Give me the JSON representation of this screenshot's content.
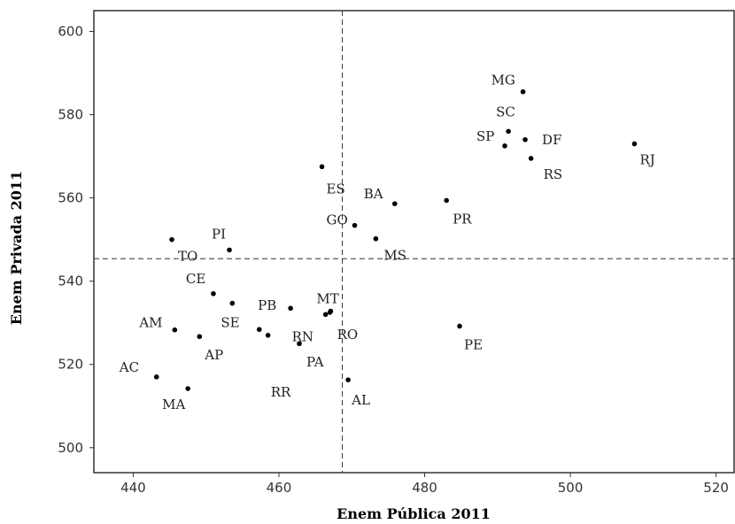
{
  "chart_data": {
    "type": "scatter",
    "xlabel": "Enem Pública 2011",
    "ylabel": "Enem Privada 2011",
    "xlim": [
      434.6,
      522.6
    ],
    "ylim": [
      494.0,
      605.0
    ],
    "xticks": [
      440,
      460,
      480,
      500,
      520
    ],
    "yticks": [
      500,
      520,
      540,
      560,
      580,
      600
    ],
    "grid": false,
    "reference_lines": {
      "x": 468.7,
      "y": 545.4
    },
    "points": [
      {
        "label": "MG",
        "x": 493.5,
        "y": 585.5
      },
      {
        "label": "SC",
        "x": 491.5,
        "y": 576.0
      },
      {
        "label": "SP",
        "x": 491.0,
        "y": 572.5
      },
      {
        "label": "DF",
        "x": 493.8,
        "y": 574.0
      },
      {
        "label": "RS",
        "x": 494.6,
        "y": 569.5
      },
      {
        "label": "RJ",
        "x": 508.8,
        "y": 573.0
      },
      {
        "label": "ES",
        "x": 465.9,
        "y": 567.5
      },
      {
        "label": "BA",
        "x": 475.9,
        "y": 558.6
      },
      {
        "label": "PR",
        "x": 483.0,
        "y": 559.4
      },
      {
        "label": "GO",
        "x": 470.4,
        "y": 553.4
      },
      {
        "label": "MS",
        "x": 473.3,
        "y": 550.2
      },
      {
        "label": "PI",
        "x": 453.2,
        "y": 547.5
      },
      {
        "label": "TO",
        "x": 445.3,
        "y": 550.0
      },
      {
        "label": "CE",
        "x": 451.0,
        "y": 537.0
      },
      {
        "label": "SE",
        "x": 453.6,
        "y": 534.7
      },
      {
        "label": "MT",
        "x": 467.1,
        "y": 532.8
      },
      {
        "label": "PB",
        "x": 461.6,
        "y": 533.5
      },
      {
        "label": "RN",
        "x": 466.4,
        "y": 532.0
      },
      {
        "label": "RO",
        "x": 467.0,
        "y": 532.5
      },
      {
        "label": "AM",
        "x": 445.7,
        "y": 528.3
      },
      {
        "label": "AP",
        "x": 449.1,
        "y": 526.7
      },
      {
        "label": "RR",
        "x": 457.3,
        "y": 528.4
      },
      {
        "label": "RR2",
        "x": 458.5,
        "y": 527.0,
        "display": ""
      },
      {
        "label": "PA",
        "x": 462.8,
        "y": 525.0
      },
      {
        "label": "PE",
        "x": 484.8,
        "y": 529.2
      },
      {
        "label": "AC",
        "x": 443.2,
        "y": 517.0
      },
      {
        "label": "MA",
        "x": 447.5,
        "y": 514.2
      },
      {
        "label": "AL",
        "x": 469.5,
        "y": 516.3
      }
    ]
  }
}
